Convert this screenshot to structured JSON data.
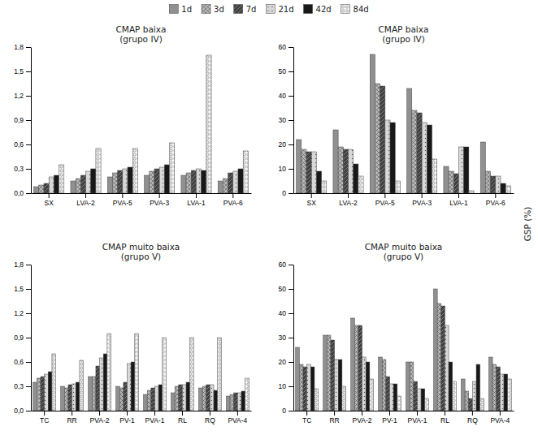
{
  "chart_data": [
    {
      "type": "bar",
      "title": "CMAP baixa\n(grupo IV)",
      "categories": [
        "SX",
        "LVA-2",
        "PVA-5",
        "PVA-3",
        "LVA-1",
        "PVA-6"
      ],
      "series": [
        {
          "name": "1d",
          "color": "#909090",
          "values": [
            0.08,
            0.15,
            0.2,
            0.22,
            0.22,
            0.15
          ]
        },
        {
          "name": "3d",
          "color": "#b8b8b8",
          "values": [
            0.1,
            0.18,
            0.25,
            0.27,
            0.25,
            0.18
          ]
        },
        {
          "name": "7d",
          "color": "#404040",
          "values": [
            0.12,
            0.22,
            0.28,
            0.3,
            0.28,
            0.25
          ]
        },
        {
          "name": "21d",
          "color": "#d8d8d8",
          "values": [
            0.2,
            0.27,
            0.3,
            0.32,
            0.3,
            0.27
          ]
        },
        {
          "name": "42d",
          "color": "#181818",
          "values": [
            0.22,
            0.3,
            0.32,
            0.35,
            0.28,
            0.3
          ]
        },
        {
          "name": "84d",
          "color": "#f5f5f5",
          "values": [
            0.35,
            0.55,
            0.55,
            0.62,
            1.7,
            0.52
          ]
        }
      ],
      "ylim": [
        0,
        1.8
      ],
      "yticks": [
        {
          "value": 0.0,
          "label": "0,0"
        },
        {
          "value": 0.3,
          "label": "0,3"
        },
        {
          "value": 0.6,
          "label": "0,6"
        },
        {
          "value": 0.9,
          "label": "0,9"
        },
        {
          "value": 1.2,
          "label": "1,2"
        },
        {
          "value": 1.5,
          "label": "1,5"
        },
        {
          "value": 1.8,
          "label": "1,8"
        }
      ],
      "grid": false,
      "legend": "upper center"
    },
    {
      "type": "bar",
      "title": "CMAP baixa\n(grupo IV)",
      "categories": [
        "SX",
        "LVA-2",
        "PVA-5",
        "PVA-3",
        "LVA-1",
        "PVA-6"
      ],
      "series": [
        {
          "name": "1d",
          "color": "#909090",
          "values": [
            22,
            26,
            57,
            43,
            11,
            21
          ]
        },
        {
          "name": "3d",
          "color": "#b8b8b8",
          "values": [
            18,
            19,
            45,
            34,
            9,
            9
          ]
        },
        {
          "name": "7d",
          "color": "#404040",
          "values": [
            17,
            18,
            44,
            33,
            8,
            7
          ]
        },
        {
          "name": "21d",
          "color": "#d8d8d8",
          "values": [
            17,
            18,
            30,
            29,
            19,
            7
          ]
        },
        {
          "name": "42d",
          "color": "#181818",
          "values": [
            9,
            12,
            29,
            28,
            19,
            4
          ]
        },
        {
          "name": "84d",
          "color": "#f5f5f5",
          "values": [
            5,
            7,
            5,
            14,
            1,
            3
          ]
        }
      ],
      "ylim": [
        0,
        60
      ],
      "yticks": [
        0,
        10,
        20,
        30,
        40,
        50,
        60
      ],
      "grid": false,
      "ylabel": "GSP (%)"
    },
    {
      "type": "bar",
      "title": "CMAP muito baixa\n(grupo V)",
      "categories": [
        "TC",
        "RR",
        "PVA-2",
        "PV-1",
        "PVA-1",
        "RL",
        "RQ",
        "PVA-4"
      ],
      "series": [
        {
          "name": "1d",
          "color": "#909090",
          "values": [
            0.35,
            0.3,
            0.42,
            0.3,
            0.2,
            0.22,
            0.28,
            0.18
          ]
        },
        {
          "name": "3d",
          "color": "#b8b8b8",
          "values": [
            0.4,
            0.28,
            0.42,
            0.28,
            0.25,
            0.3,
            0.3,
            0.2
          ]
        },
        {
          "name": "7d",
          "color": "#404040",
          "values": [
            0.42,
            0.32,
            0.55,
            0.35,
            0.28,
            0.32,
            0.32,
            0.22
          ]
        },
        {
          "name": "21d",
          "color": "#d8d8d8",
          "values": [
            0.45,
            0.33,
            0.65,
            0.58,
            0.3,
            0.32,
            0.32,
            0.22
          ]
        },
        {
          "name": "42d",
          "color": "#181818",
          "values": [
            0.48,
            0.35,
            0.7,
            0.6,
            0.32,
            0.35,
            0.25,
            0.24
          ]
        },
        {
          "name": "84d",
          "color": "#f5f5f5",
          "values": [
            0.7,
            0.62,
            0.95,
            0.95,
            0.9,
            0.9,
            0.9,
            0.4
          ]
        }
      ],
      "ylim": [
        0,
        1.8
      ],
      "yticks": [
        {
          "value": 0.0,
          "label": "0,0"
        },
        {
          "value": 0.3,
          "label": "0,3"
        },
        {
          "value": 0.6,
          "label": "0,6"
        },
        {
          "value": 0.9,
          "label": "0,9"
        },
        {
          "value": 1.2,
          "label": "1,2"
        },
        {
          "value": 1.5,
          "label": "1,5"
        },
        {
          "value": 1.8,
          "label": "1,8"
        }
      ],
      "grid": false
    },
    {
      "type": "bar",
      "title": "CMAP muito baixa\n(grupo V)",
      "categories": [
        "TC",
        "RR",
        "PVA-2",
        "PV-1",
        "PVA-1",
        "RL",
        "RQ",
        "PVA-4"
      ],
      "series": [
        {
          "name": "1d",
          "color": "#909090",
          "values": [
            26,
            31,
            38,
            22,
            20,
            50,
            13,
            22
          ]
        },
        {
          "name": "3d",
          "color": "#b8b8b8",
          "values": [
            19,
            31,
            35,
            21,
            20,
            44,
            8,
            19
          ]
        },
        {
          "name": "7d",
          "color": "#404040",
          "values": [
            18,
            29,
            35,
            14,
            12,
            43,
            5,
            18
          ]
        },
        {
          "name": "21d",
          "color": "#d8d8d8",
          "values": [
            19,
            21,
            22,
            11,
            9,
            35,
            12,
            15
          ]
        },
        {
          "name": "42d",
          "color": "#181818",
          "values": [
            18,
            21,
            20,
            11,
            9,
            20,
            19,
            15
          ]
        },
        {
          "name": "84d",
          "color": "#f5f5f5",
          "values": [
            9,
            10,
            13,
            6,
            5,
            12,
            5,
            13
          ]
        }
      ],
      "ylim": [
        0,
        60
      ],
      "yticks": [
        0,
        10,
        20,
        30,
        40,
        50,
        60
      ],
      "grid": false
    }
  ]
}
